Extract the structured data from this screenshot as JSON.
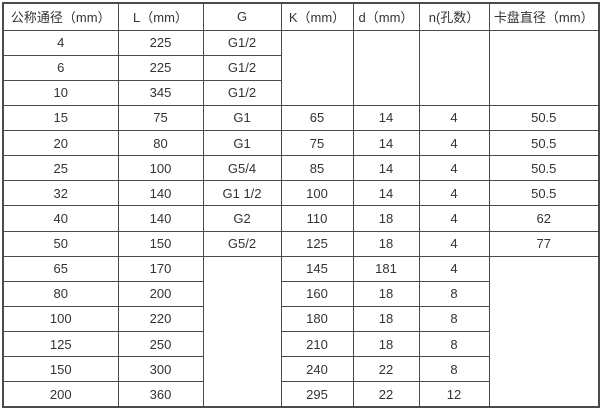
{
  "colors": {
    "border": "#4a4a4a",
    "text": "#333333",
    "background": "#ffffff"
  },
  "table": {
    "headers": [
      "公称通径（mm）",
      "L（mm）",
      "G",
      "K（mm）",
      "d（mm）",
      "n(孔数）",
      "卡盘直径（mm）"
    ],
    "rows": [
      [
        "4",
        "225",
        "G1/2",
        {
          "text": "",
          "rowspan": 3
        },
        {
          "text": "",
          "rowspan": 3
        },
        {
          "text": "",
          "rowspan": 3
        },
        {
          "text": "",
          "rowspan": 3
        }
      ],
      [
        "6",
        "225",
        "G1/2"
      ],
      [
        "10",
        "345",
        "G1/2"
      ],
      [
        "15",
        "75",
        "G1",
        "65",
        "14",
        "4",
        "50.5"
      ],
      [
        "20",
        "80",
        "G1",
        "75",
        "14",
        "4",
        "50.5"
      ],
      [
        "25",
        "100",
        "G5/4",
        "85",
        "14",
        "4",
        "50.5"
      ],
      [
        "32",
        "140",
        "G1 1/2",
        "100",
        "14",
        "4",
        "50.5"
      ],
      [
        "40",
        "140",
        "G2",
        "110",
        "18",
        "4",
        "62"
      ],
      [
        "50",
        "150",
        "G5/2",
        "125",
        "18",
        "4",
        "77"
      ],
      [
        "65",
        "170",
        {
          "text": "",
          "rowspan": 6
        },
        "145",
        "181",
        "4",
        {
          "text": "",
          "rowspan": 6
        }
      ],
      [
        "80",
        "200",
        "160",
        "18",
        "8"
      ],
      [
        "100",
        "220",
        "180",
        "18",
        "8"
      ],
      [
        "125",
        "250",
        "210",
        "18",
        "8"
      ],
      [
        "150",
        "300",
        "240",
        "22",
        "8"
      ],
      [
        "200",
        "360",
        "295",
        "22",
        "12"
      ]
    ]
  }
}
